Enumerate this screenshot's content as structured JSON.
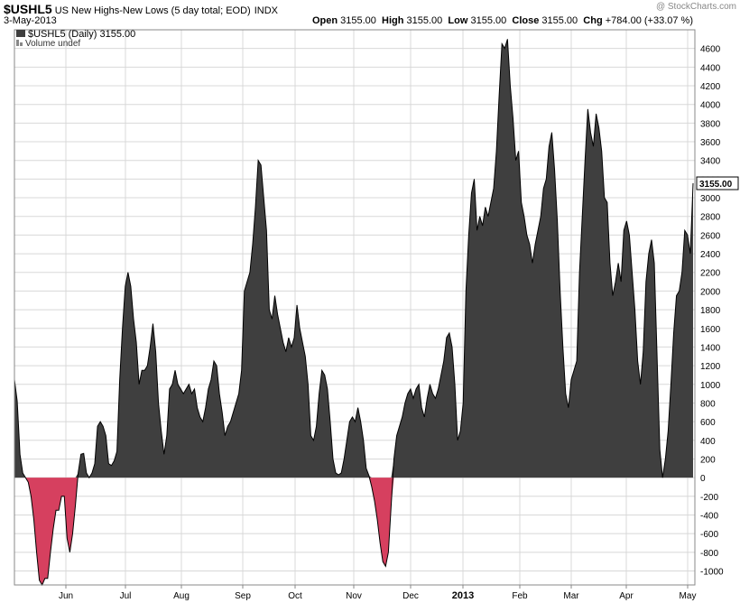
{
  "header": {
    "symbol": "$USHL5",
    "description": "US New Highs-New Lows (5 day total; EOD)",
    "exchange": "INDX",
    "watermark": "@ StockCharts.com",
    "date": "3-May-2013",
    "open_label": "Open",
    "open_value": "3155.00",
    "high_label": "High",
    "high_value": "3155.00",
    "low_label": "Low",
    "low_value": "3155.00",
    "close_label": "Close",
    "close_value": "3155.00",
    "chg_label": "Chg",
    "chg_value": "+784.00 (+33.07 %)"
  },
  "legend": {
    "series_label": "$USHL5 (Daily) 3155.00",
    "volume_label": "Volume undef"
  },
  "colors": {
    "positive_fill": "#3f3f3f",
    "negative_fill": "#d6405f",
    "grid": "#d8d8d8",
    "line": "#000000"
  },
  "chart_data": {
    "type": "area",
    "title": "$USHL5 US New Highs-New Lows (5 day total; EOD)",
    "ylim": [
      -1150,
      4800
    ],
    "y_ticks": [
      -1000,
      -800,
      -600,
      -400,
      -200,
      0,
      200,
      400,
      600,
      800,
      1000,
      1200,
      1400,
      1600,
      1800,
      2000,
      2200,
      2400,
      2600,
      2800,
      3000,
      3200,
      3400,
      3600,
      3800,
      4000,
      4200,
      4400,
      4600
    ],
    "last_value_label": "3155.00",
    "x_range": [
      "2012-05-07",
      "2013-05-03"
    ],
    "x_ticks": [
      {
        "label": "Jun",
        "bold": false
      },
      {
        "label": "Jul",
        "bold": false
      },
      {
        "label": "Aug",
        "bold": false
      },
      {
        "label": "Sep",
        "bold": false
      },
      {
        "label": "Oct",
        "bold": false
      },
      {
        "label": "Nov",
        "bold": false
      },
      {
        "label": "Dec",
        "bold": false
      },
      {
        "label": "2013",
        "bold": true
      },
      {
        "label": "Feb",
        "bold": false
      },
      {
        "label": "Mar",
        "bold": false
      },
      {
        "label": "Apr",
        "bold": false
      },
      {
        "label": "May",
        "bold": false
      }
    ],
    "series": [
      {
        "name": "$USHL5 (Daily)",
        "values": [
          1050,
          820,
          250,
          50,
          0,
          -50,
          -200,
          -450,
          -800,
          -1100,
          -1150,
          -1080,
          -1080,
          -800,
          -550,
          -350,
          -350,
          -200,
          -200,
          -650,
          -800,
          -600,
          -300,
          50,
          250,
          260,
          50,
          0,
          50,
          150,
          550,
          600,
          550,
          450,
          150,
          130,
          180,
          280,
          1050,
          1600,
          2050,
          2200,
          2050,
          1700,
          1450,
          1000,
          1150,
          1150,
          1200,
          1400,
          1650,
          1350,
          800,
          500,
          250,
          450,
          950,
          1000,
          1150,
          1000,
          950,
          900,
          950,
          1000,
          900,
          950,
          750,
          650,
          600,
          750,
          950,
          1050,
          1250,
          1200,
          900,
          700,
          450,
          550,
          600,
          700,
          800,
          900,
          1150,
          2000,
          2100,
          2200,
          2500,
          2900,
          3400,
          3350,
          3000,
          2650,
          1800,
          1700,
          1950,
          1750,
          1600,
          1450,
          1350,
          1500,
          1400,
          1500,
          1850,
          1600,
          1450,
          1300,
          1000,
          450,
          400,
          550,
          900,
          1150,
          1100,
          950,
          600,
          200,
          50,
          30,
          50,
          200,
          400,
          600,
          650,
          600,
          750,
          600,
          400,
          100,
          20,
          -100,
          -250,
          -450,
          -700,
          -900,
          -950,
          -800,
          -300,
          200,
          450,
          550,
          650,
          800,
          900,
          950,
          850,
          950,
          1000,
          750,
          650,
          850,
          1000,
          900,
          850,
          950,
          1100,
          1250,
          1500,
          1550,
          1400,
          1000,
          400,
          500,
          800,
          2000,
          2600,
          3050,
          3200,
          2650,
          2800,
          2700,
          2900,
          2800,
          2950,
          3100,
          3500,
          4100,
          4650,
          4600,
          4700,
          4200,
          3850,
          3400,
          3500,
          2950,
          2800,
          2600,
          2500,
          2300,
          2500,
          2650,
          2800,
          3100,
          3200,
          3550,
          3700,
          3300,
          2750,
          2000,
          1400,
          900,
          750,
          1050,
          1150,
          1250,
          2200,
          2800,
          3400,
          3950,
          3700,
          3550,
          3900,
          3750,
          3500,
          3000,
          2950,
          2300,
          1950,
          2100,
          2300,
          2100,
          2650,
          2750,
          2600,
          2200,
          1800,
          1250,
          1000,
          1350,
          2100,
          2400,
          2550,
          2300,
          1300,
          300,
          0,
          200,
          500,
          1000,
          1550,
          1950,
          2000,
          2200,
          2650,
          2600,
          2400,
          3155
        ]
      }
    ]
  }
}
